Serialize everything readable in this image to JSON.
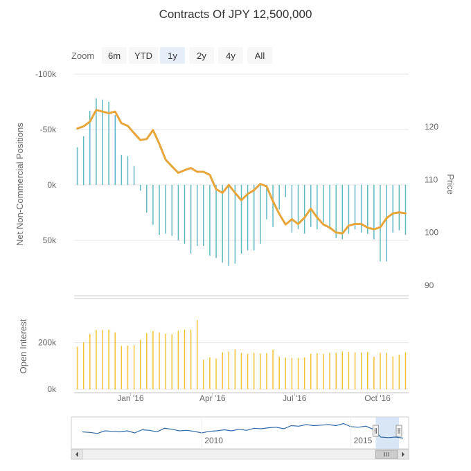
{
  "chart_title": "Contracts Of JPY 12,500,000",
  "zoom": {
    "label": "Zoom",
    "buttons": [
      "6m",
      "YTD",
      "1y",
      "2y",
      "4y",
      "All"
    ],
    "selected": "1y"
  },
  "colors": {
    "positions_bars": "#5fb8c4",
    "price_line": "#e8a53a",
    "open_interest_bars": "#f3c233",
    "navigator_line": "#2f6aa8",
    "navigator_mask": "#cfe0f3",
    "zoom_selected": "#e6eefa"
  },
  "chart_data": [
    {
      "type": "bar",
      "title": "",
      "ylabel": "Net Non-Commercial Positions",
      "y_axis_reversed": true,
      "ylim": [
        -100000,
        100000
      ],
      "y_ticks": [
        -100000,
        -50000,
        0,
        50000
      ],
      "y_tick_labels": [
        "-100k",
        "-50k",
        "0k",
        "50k"
      ],
      "x_tick_labels": [
        "Jan '16",
        "Apr '16",
        "Jul '16",
        "Oct '16"
      ],
      "x_tick_dates": [
        "2016-01-01",
        "2016-04-01",
        "2016-07-01",
        "2016-10-01"
      ],
      "x": [
        "2015-11-03",
        "2015-11-10",
        "2015-11-17",
        "2015-11-24",
        "2015-12-01",
        "2015-12-08",
        "2015-12-15",
        "2015-12-22",
        "2015-12-29",
        "2016-01-05",
        "2016-01-12",
        "2016-01-19",
        "2016-01-26",
        "2016-02-02",
        "2016-02-09",
        "2016-02-16",
        "2016-02-23",
        "2016-03-01",
        "2016-03-08",
        "2016-03-15",
        "2016-03-22",
        "2016-03-29",
        "2016-04-05",
        "2016-04-12",
        "2016-04-19",
        "2016-04-26",
        "2016-05-03",
        "2016-05-10",
        "2016-05-17",
        "2016-05-24",
        "2016-05-31",
        "2016-06-07",
        "2016-06-14",
        "2016-06-21",
        "2016-06-28",
        "2016-07-05",
        "2016-07-12",
        "2016-07-19",
        "2016-07-26",
        "2016-08-02",
        "2016-08-09",
        "2016-08-16",
        "2016-08-23",
        "2016-08-30",
        "2016-09-06",
        "2016-09-13",
        "2016-09-20",
        "2016-09-27",
        "2016-10-04",
        "2016-10-11",
        "2016-10-18",
        "2016-10-25",
        "2016-11-01"
      ],
      "series": [
        {
          "values": [
            -34000,
            -44000,
            -67000,
            -78000,
            -77000,
            -75000,
            -63000,
            -27000,
            -26000,
            -17000,
            5000,
            25000,
            36000,
            45000,
            44000,
            46000,
            50000,
            53000,
            62000,
            55000,
            55000,
            64000,
            66000,
            70000,
            73000,
            71000,
            62000,
            59000,
            59000,
            53000,
            31000,
            38000,
            22000,
            11000,
            43000,
            40000,
            44000,
            38000,
            40000,
            34000,
            40000,
            48000,
            49000,
            44000,
            40000,
            43000,
            44000,
            49000,
            69000,
            69000,
            43000,
            41000,
            45000
          ]
        },
        {
          "axis": "right",
          "ylabel": "Price",
          "ylim": [
            88,
            130
          ],
          "y_ticks": [
            90,
            100,
            110,
            120
          ],
          "values": [
            119.7,
            120.1,
            121.0,
            123.2,
            122.9,
            122.6,
            122.9,
            120.7,
            120.2,
            118.8,
            117.5,
            117.7,
            119.4,
            116.8,
            113.8,
            112.5,
            111.3,
            111.8,
            112.2,
            111.5,
            111.5,
            110.9,
            108.2,
            107.5,
            109.0,
            107.5,
            106.1,
            107.3,
            108.0,
            109.2,
            108.7,
            105.9,
            103.5,
            101.5,
            102.5,
            101.6,
            102.8,
            104.5,
            102.8,
            101.5,
            100.9,
            100.0,
            99.8,
            101.3,
            101.6,
            101.6,
            100.9,
            100.6,
            101.0,
            102.7,
            103.6,
            103.8,
            103.6
          ]
        }
      ]
    },
    {
      "type": "bar",
      "title": "",
      "ylabel": "Open Interest",
      "ylim": [
        0,
        380000
      ],
      "y_ticks": [
        0,
        200000
      ],
      "y_tick_labels": [
        "0k",
        "200k"
      ],
      "x_tick_labels": [
        "Jan '16",
        "Apr '16",
        "Jul '16",
        "Oct '16"
      ],
      "x": [
        "2015-11-03",
        "2015-11-10",
        "2015-11-17",
        "2015-11-24",
        "2015-12-01",
        "2015-12-08",
        "2015-12-15",
        "2015-12-22",
        "2015-12-29",
        "2016-01-05",
        "2016-01-12",
        "2016-01-19",
        "2016-01-26",
        "2016-02-02",
        "2016-02-09",
        "2016-02-16",
        "2016-02-23",
        "2016-03-01",
        "2016-03-08",
        "2016-03-15",
        "2016-03-22",
        "2016-03-29",
        "2016-04-05",
        "2016-04-12",
        "2016-04-19",
        "2016-04-26",
        "2016-05-03",
        "2016-05-10",
        "2016-05-17",
        "2016-05-24",
        "2016-05-31",
        "2016-06-07",
        "2016-06-14",
        "2016-06-21",
        "2016-06-28",
        "2016-07-05",
        "2016-07-12",
        "2016-07-19",
        "2016-07-26",
        "2016-08-02",
        "2016-08-09",
        "2016-08-16",
        "2016-08-23",
        "2016-08-30",
        "2016-09-06",
        "2016-09-13",
        "2016-09-20",
        "2016-09-27",
        "2016-10-04",
        "2016-10-11",
        "2016-10-18",
        "2016-10-25",
        "2016-11-01"
      ],
      "series": [
        {
          "values": [
            182000,
            202000,
            237000,
            254000,
            254000,
            256000,
            244000,
            186000,
            187000,
            189000,
            212000,
            240000,
            250000,
            244000,
            238000,
            236000,
            251000,
            256000,
            256000,
            296000,
            127000,
            137000,
            132000,
            158000,
            162000,
            171000,
            156000,
            152000,
            156000,
            153000,
            155000,
            169000,
            140000,
            135000,
            134000,
            134000,
            137000,
            152000,
            154000,
            151000,
            156000,
            156000,
            162000,
            160000,
            158000,
            158000,
            160000,
            139000,
            156000,
            156000,
            141000,
            148000,
            158000
          ]
        }
      ]
    },
    {
      "type": "line",
      "title": "",
      "role": "navigator",
      "x_tick_labels": [
        "2010",
        "2015"
      ],
      "selected_range": [
        "2015-11-01",
        "2016-11-01"
      ],
      "x": [
        2006.0,
        2006.25,
        2006.5,
        2006.75,
        2007.0,
        2007.25,
        2007.5,
        2007.75,
        2008.0,
        2008.25,
        2008.5,
        2008.75,
        2009.0,
        2009.25,
        2009.5,
        2009.75,
        2010.0,
        2010.25,
        2010.5,
        2010.75,
        2011.0,
        2011.25,
        2011.5,
        2011.75,
        2012.0,
        2012.25,
        2012.5,
        2012.75,
        2013.0,
        2013.25,
        2013.5,
        2013.75,
        2014.0,
        2014.25,
        2014.5,
        2014.75,
        2015.0,
        2015.25,
        2015.5,
        2015.75,
        2016.0,
        2016.25,
        2016.5,
        2016.75
      ],
      "values": [
        -20,
        -25,
        -35,
        -10,
        -15,
        -20,
        -10,
        -30,
        0,
        -5,
        -20,
        15,
        5,
        -10,
        -5,
        -15,
        -30,
        -15,
        -10,
        0,
        -10,
        5,
        -5,
        15,
        10,
        20,
        25,
        10,
        40,
        35,
        50,
        40,
        45,
        50,
        40,
        60,
        30,
        25,
        35,
        5,
        -70,
        -75,
        -70,
        -80
      ]
    }
  ]
}
